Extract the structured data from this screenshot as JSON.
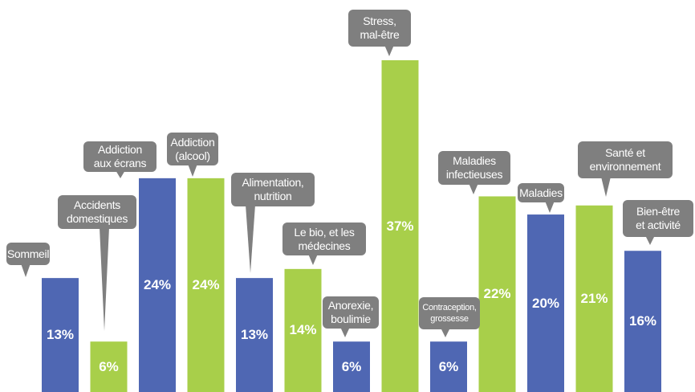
{
  "chart_data": {
    "type": "bar",
    "categories": [
      "Sommeil",
      "Accidents\ndomestiques",
      "Addiction\naux écrans",
      "Addiction\n(alcool)",
      "Alimentation,\nnutrition",
      "Le bio, et les\nmédecines",
      "Anorexie,\nboulimie",
      "Stress,\nmal-être",
      "Contraception,\ngrossesse",
      "Maladies\ninfectieuses",
      "Maladies",
      "Santé et\nenvironnement",
      "Bien-être\net activité"
    ],
    "values": [
      13,
      6,
      24,
      24,
      13,
      14,
      6,
      37,
      6,
      22,
      20,
      21,
      16
    ],
    "value_labels": [
      "13%",
      "6%",
      "24%",
      "24%",
      "13%",
      "14%",
      "6%",
      "37%",
      "6%",
      "22%",
      "20%",
      "21%",
      "16%"
    ],
    "colors": [
      "#4f67b3",
      "#a8cf4a",
      "#4f67b3",
      "#a8cf4a",
      "#4f67b3",
      "#a8cf4a",
      "#4f67b3",
      "#a8cf4a",
      "#4f67b3",
      "#a8cf4a",
      "#4f67b3",
      "#a8cf4a",
      "#4f67b3"
    ]
  }
}
